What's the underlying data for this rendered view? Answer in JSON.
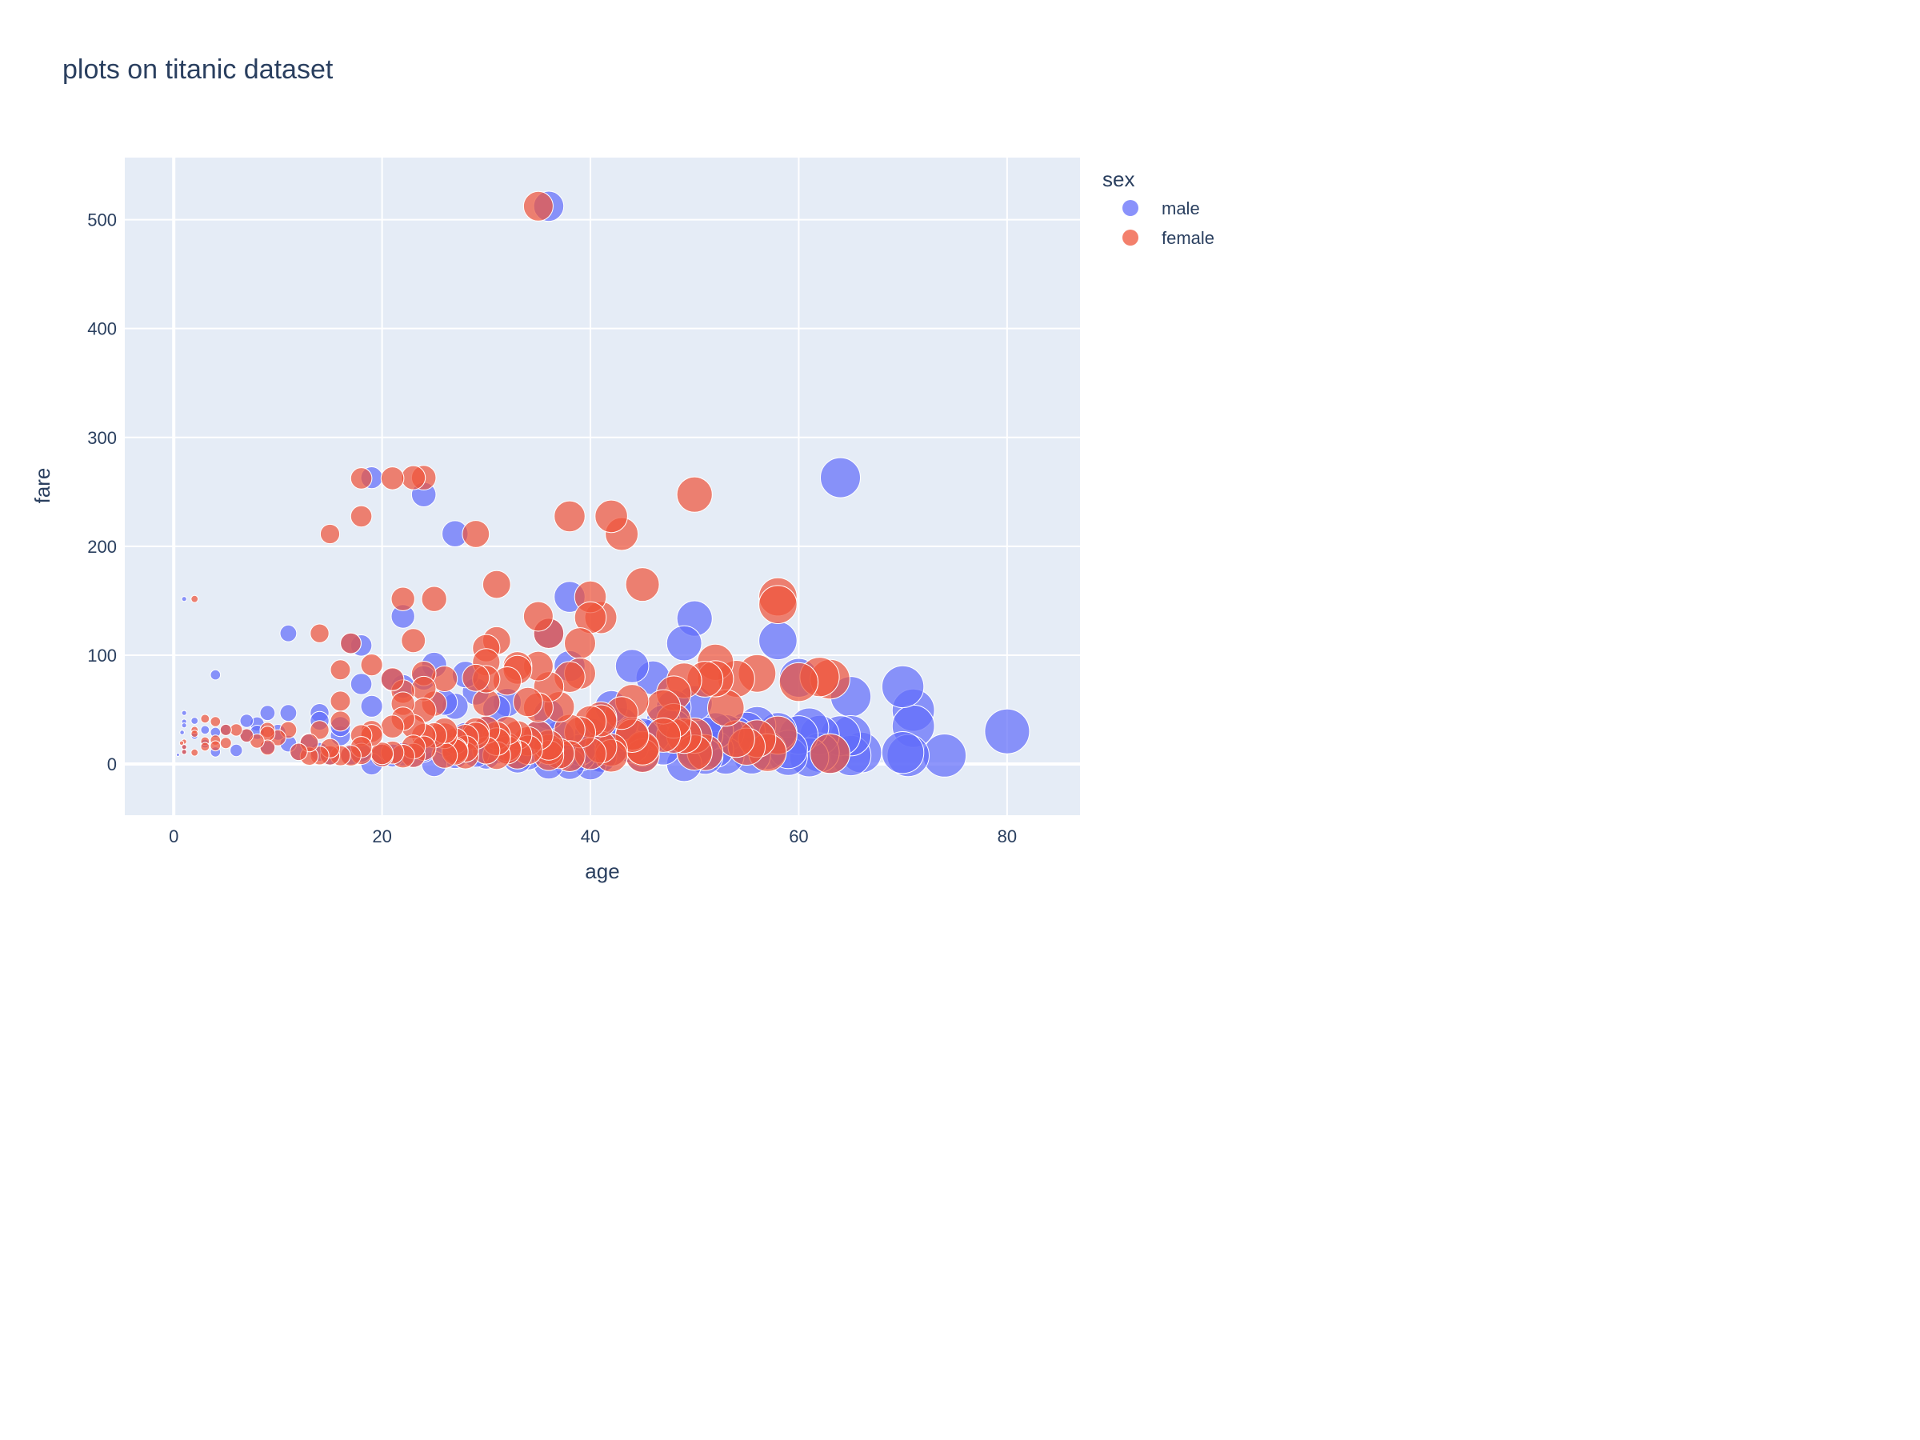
{
  "chart_data": {
    "type": "scatter",
    "title": "plots on titanic dataset",
    "xlabel": "age",
    "ylabel": "fare",
    "xlim": [
      -4.7,
      87
    ],
    "ylim": [
      -47,
      557
    ],
    "xticks": [
      0,
      20,
      40,
      60,
      80
    ],
    "yticks": [
      0,
      100,
      200,
      300,
      400,
      500
    ],
    "grid": true,
    "legend": {
      "title": "sex",
      "placement": "right"
    },
    "size_variable": "age",
    "series": [
      {
        "name": "male",
        "color": "#636efa",
        "points": [
          [
            36,
            512.3
          ],
          [
            64,
            263
          ],
          [
            19,
            263
          ],
          [
            24,
            247.5
          ],
          [
            27,
            211.5
          ],
          [
            22,
            135.6
          ],
          [
            38,
            153.5
          ],
          [
            50,
            133.7
          ],
          [
            58,
            113.3
          ],
          [
            49,
            110.9
          ],
          [
            36,
            120
          ],
          [
            11,
            120
          ],
          [
            18,
            108.9
          ],
          [
            17,
            110.9
          ],
          [
            4,
            81.9
          ],
          [
            1,
            151.6
          ],
          [
            44,
            90
          ],
          [
            46,
            79.2
          ],
          [
            60,
            79.2
          ],
          [
            65,
            61.9
          ],
          [
            70,
            71
          ],
          [
            71,
            49.5
          ],
          [
            71,
            34.7
          ],
          [
            80,
            30
          ],
          [
            74,
            7.8
          ],
          [
            70.5,
            7.8
          ],
          [
            70,
            10.5
          ],
          [
            66,
            10.5
          ],
          [
            65,
            7.8
          ],
          [
            65,
            26
          ],
          [
            64,
            26
          ],
          [
            62,
            26.6
          ],
          [
            61,
            33.5
          ],
          [
            61,
            6.2
          ],
          [
            60,
            26.6
          ],
          [
            59,
            7.2
          ],
          [
            58,
            29.7
          ],
          [
            56,
            35.5
          ],
          [
            55.5,
            8
          ],
          [
            54,
            26.3
          ],
          [
            53,
            28.5
          ],
          [
            52,
            13.5
          ],
          [
            51,
            26.6
          ],
          [
            51,
            7.1
          ],
          [
            50,
            55.9
          ],
          [
            49,
            0
          ],
          [
            49,
            26
          ],
          [
            48,
            52
          ],
          [
            47,
            38.5
          ],
          [
            46,
            26
          ],
          [
            45,
            8.05
          ],
          [
            44,
            16.1
          ],
          [
            43,
            26.3
          ],
          [
            42,
            52.5
          ],
          [
            42,
            13
          ],
          [
            41,
            7.8
          ],
          [
            40,
            0
          ],
          [
            40,
            27.7
          ],
          [
            39,
            7.9
          ],
          [
            38,
            0
          ],
          [
            38,
            90
          ],
          [
            37,
            26
          ],
          [
            36,
            0
          ],
          [
            35,
            26.5
          ],
          [
            34,
            8
          ],
          [
            33,
            8.65
          ],
          [
            32,
            56.5
          ],
          [
            31,
            50.5
          ],
          [
            30,
            7.9
          ],
          [
            29,
            66.6
          ],
          [
            28,
            82.2
          ],
          [
            28,
            26
          ],
          [
            27,
            53.1
          ],
          [
            27,
            7.9
          ],
          [
            26,
            56.5
          ],
          [
            25,
            91.1
          ],
          [
            25,
            0
          ],
          [
            24,
            79.2
          ],
          [
            23,
            7.9
          ],
          [
            22,
            71.3
          ],
          [
            21,
            77.3
          ],
          [
            21,
            7.8
          ],
          [
            20,
            7.9
          ],
          [
            19,
            53.1
          ],
          [
            19,
            0
          ],
          [
            18,
            73.5
          ],
          [
            18,
            11.5
          ],
          [
            17,
            8.7
          ],
          [
            16,
            26
          ],
          [
            16,
            34.4
          ],
          [
            15,
            7.2
          ],
          [
            14,
            46.9
          ],
          [
            14,
            39.7
          ],
          [
            14,
            11.2
          ],
          [
            13,
            20.2
          ],
          [
            12,
            11.2
          ],
          [
            11,
            46.9
          ],
          [
            11,
            18.8
          ],
          [
            10,
            29.1
          ],
          [
            9,
            46.9
          ],
          [
            9,
            15.9
          ],
          [
            8,
            36.75
          ],
          [
            8,
            29.1
          ],
          [
            7,
            39.7
          ],
          [
            7,
            26.25
          ],
          [
            6,
            12.5
          ],
          [
            5,
            31.4
          ],
          [
            4,
            11.1
          ],
          [
            4,
            29.1
          ],
          [
            3,
            31.3
          ],
          [
            3,
            18.75
          ],
          [
            2,
            39.7
          ],
          [
            2,
            26
          ],
          [
            1,
            46.9
          ],
          [
            1,
            39
          ],
          [
            1,
            35.5
          ],
          [
            1,
            11.1
          ],
          [
            1,
            15.7
          ],
          [
            0.8,
            29
          ],
          [
            0.4,
            8.5
          ],
          [
            31,
            13
          ],
          [
            34,
            14.4
          ],
          [
            36,
            45.5
          ],
          [
            39,
            13
          ],
          [
            41,
            7.1
          ],
          [
            43,
            36.75
          ],
          [
            47,
            15
          ],
          [
            50,
            13
          ],
          [
            52,
            30.5
          ],
          [
            53,
            7.5
          ],
          [
            55,
            30.5
          ],
          [
            57,
            12.35
          ],
          [
            59,
            13.5
          ],
          [
            62,
            10.5
          ],
          [
            63,
            9.6
          ],
          [
            45,
            26.55
          ],
          [
            48,
            34
          ],
          [
            30,
            31
          ],
          [
            33,
            5
          ],
          [
            37,
            7.75
          ],
          [
            26,
            18.8
          ],
          [
            24,
            13
          ],
          [
            22,
            9
          ],
          [
            29,
            9.5
          ]
        ]
      },
      {
        "name": "female",
        "color": "#ef553b",
        "points": [
          [
            35,
            512.3
          ],
          [
            18,
            262.4
          ],
          [
            21,
            262.4
          ],
          [
            23,
            263
          ],
          [
            24,
            263
          ],
          [
            50,
            247.5
          ],
          [
            18,
            227.5
          ],
          [
            38,
            227.5
          ],
          [
            42,
            227.5
          ],
          [
            15,
            211.3
          ],
          [
            29,
            211.3
          ],
          [
            43,
            211.3
          ],
          [
            31,
            164.9
          ],
          [
            45,
            164.9
          ],
          [
            22,
            151.6
          ],
          [
            25,
            151.6
          ],
          [
            2,
            151.6
          ],
          [
            58,
            153.5
          ],
          [
            58,
            146.5
          ],
          [
            40,
            153.5
          ],
          [
            35,
            135.6
          ],
          [
            41,
            134.5
          ],
          [
            40,
            134.5
          ],
          [
            36,
            120
          ],
          [
            14,
            120
          ],
          [
            31,
            113.3
          ],
          [
            23,
            113.3
          ],
          [
            30,
            106.4
          ],
          [
            39,
            110.9
          ],
          [
            17,
            110.9
          ],
          [
            16,
            86.5
          ],
          [
            19,
            91.1
          ],
          [
            30,
            93.5
          ],
          [
            33,
            90
          ],
          [
            35,
            90
          ],
          [
            24,
            83.2
          ],
          [
            33,
            86.5
          ],
          [
            52,
            93.5
          ],
          [
            54,
            78.3
          ],
          [
            56,
            83.2
          ],
          [
            60,
            75.3
          ],
          [
            62,
            80
          ],
          [
            63,
            77.9
          ],
          [
            49,
            76.7
          ],
          [
            48,
            65
          ],
          [
            47,
            52.5
          ],
          [
            44,
            57.8
          ],
          [
            53,
            51.5
          ],
          [
            51,
            77.9
          ],
          [
            38,
            80
          ],
          [
            36,
            71
          ],
          [
            39,
            83.2
          ],
          [
            29,
            79.2
          ],
          [
            21,
            77.9
          ],
          [
            22,
            66.6
          ],
          [
            24,
            69.3
          ],
          [
            26,
            78.3
          ],
          [
            32,
            76.3
          ],
          [
            34,
            57
          ],
          [
            37,
            52.6
          ],
          [
            30,
            56.5
          ],
          [
            25,
            55.4
          ],
          [
            22,
            55.4
          ],
          [
            24,
            49.5
          ],
          [
            16,
            57.8
          ],
          [
            16,
            39.4
          ],
          [
            18,
            26.3
          ],
          [
            19,
            30
          ],
          [
            21,
            34.4
          ],
          [
            22,
            41.6
          ],
          [
            23,
            34.4
          ],
          [
            24,
            26
          ],
          [
            25,
            26.3
          ],
          [
            26,
            26
          ],
          [
            27,
            21.1
          ],
          [
            28,
            24.2
          ],
          [
            29,
            30
          ],
          [
            30,
            31.4
          ],
          [
            31,
            26.25
          ],
          [
            32,
            15.5
          ],
          [
            33,
            26.55
          ],
          [
            34,
            21
          ],
          [
            35,
            26.3
          ],
          [
            36,
            13.4
          ],
          [
            37,
            9.6
          ],
          [
            38,
            31.4
          ],
          [
            39,
            29.1
          ],
          [
            40,
            39
          ],
          [
            41,
            42.5
          ],
          [
            42,
            13
          ],
          [
            43,
            46.9
          ],
          [
            44,
            27.7
          ],
          [
            45,
            13.5
          ],
          [
            45,
            7.75
          ],
          [
            47,
            26.55
          ],
          [
            48,
            25.9
          ],
          [
            49,
            25.9
          ],
          [
            50,
            26.1
          ],
          [
            51,
            10.5
          ],
          [
            52,
            78.3
          ],
          [
            54,
            23
          ],
          [
            55,
            16
          ],
          [
            56,
            23.3
          ],
          [
            57,
            10.5
          ],
          [
            58,
            26.55
          ],
          [
            63,
            9.6
          ],
          [
            18,
            9.35
          ],
          [
            18,
            15.5
          ],
          [
            17,
            7.75
          ],
          [
            16,
            7.7
          ],
          [
            15,
            8.0
          ],
          [
            15,
            14.5
          ],
          [
            14,
            7.9
          ],
          [
            14,
            31.3
          ],
          [
            13,
            7.2
          ],
          [
            13,
            19.5
          ],
          [
            12,
            11.2
          ],
          [
            11,
            31.3
          ],
          [
            10,
            24.1
          ],
          [
            9,
            31.3
          ],
          [
            9,
            27.9
          ],
          [
            9,
            15.2
          ],
          [
            8,
            21.1
          ],
          [
            7,
            26.25
          ],
          [
            6,
            31.3
          ],
          [
            5,
            31.3
          ],
          [
            5,
            19.3
          ],
          [
            4,
            39
          ],
          [
            4,
            22
          ],
          [
            4,
            16.7
          ],
          [
            3,
            41.6
          ],
          [
            3,
            21
          ],
          [
            3,
            15.9
          ],
          [
            2,
            31.3
          ],
          [
            2,
            27.9
          ],
          [
            2,
            10.5
          ],
          [
            1,
            20.6
          ],
          [
            1,
            15.7
          ],
          [
            1,
            11.1
          ],
          [
            0.75,
            19.3
          ],
          [
            20,
            7.9
          ],
          [
            21,
            10.5
          ],
          [
            22,
            7.25
          ],
          [
            23,
            7.9
          ],
          [
            26,
            7.9
          ],
          [
            27,
            12.5
          ],
          [
            28,
            7.75
          ],
          [
            30,
            12.5
          ],
          [
            31,
            7.9
          ],
          [
            32,
            13
          ],
          [
            33,
            8.6
          ],
          [
            36,
            7.9
          ],
          [
            40,
            9.5
          ],
          [
            41,
            15.5
          ],
          [
            44,
            26
          ],
          [
            45,
            14.5
          ],
          [
            48,
            39.6
          ],
          [
            50,
            10.5
          ],
          [
            30,
            77.9
          ],
          [
            35,
            51.9
          ],
          [
            41,
            39.7
          ],
          [
            19,
            26.3
          ],
          [
            20,
            9.8
          ],
          [
            24,
            14.5
          ],
          [
            26,
            30.5
          ],
          [
            27,
            11.1
          ],
          [
            29,
            26
          ],
          [
            31,
            20.5
          ],
          [
            34,
            13
          ],
          [
            38,
            7.2
          ],
          [
            42,
            7.6
          ],
          [
            36,
            17.4
          ],
          [
            32,
            30.7
          ],
          [
            28,
            13.9
          ],
          [
            23,
            15.7
          ]
        ]
      }
    ]
  }
}
